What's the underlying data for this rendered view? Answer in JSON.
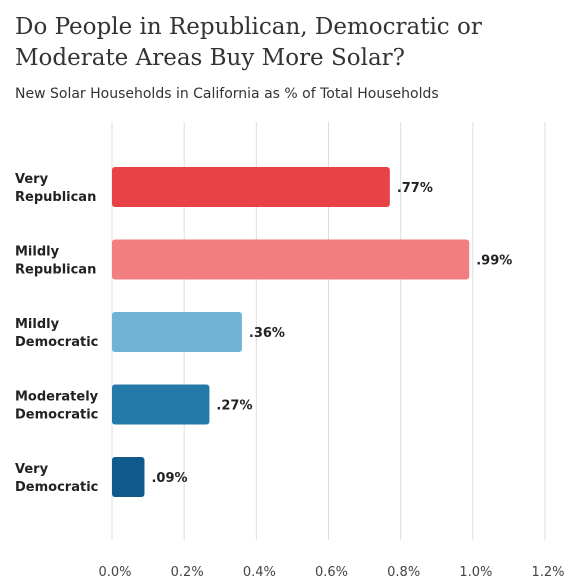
{
  "chart_data": {
    "type": "bar",
    "orientation": "horizontal",
    "title": "Do People in Republican, Democratic or Moderate Areas Buy More Solar?",
    "subtitle": "New Solar Households in California as % of Total Households",
    "categories": [
      [
        "Very",
        "Republican"
      ],
      [
        "Mildly",
        "Republican"
      ],
      [
        "Mildly",
        "Democratic"
      ],
      [
        "Moderately",
        "Democratic"
      ],
      [
        "Very",
        "Democratic"
      ]
    ],
    "values": [
      0.77,
      0.99,
      0.36,
      0.27,
      0.09
    ],
    "value_labels": [
      ".77%",
      ".99%",
      ".36%",
      ".27%",
      ".09%"
    ],
    "bar_colors": [
      "#e84146",
      "#f27e80",
      "#70b3d4",
      "#2379a8",
      "#0e5a8c"
    ],
    "xlim": [
      0,
      1.2
    ],
    "x_ticks": [
      0.0,
      0.2,
      0.4,
      0.6,
      0.8,
      1.0,
      1.2
    ],
    "x_tick_labels": [
      "0.0%",
      "0.2%",
      "0.4%",
      "0.6%",
      "0.8%",
      "1.0%",
      "1.2%"
    ],
    "xlabel": "",
    "ylabel": "",
    "grid": "vertical",
    "gridline_color": "#dddddd"
  }
}
